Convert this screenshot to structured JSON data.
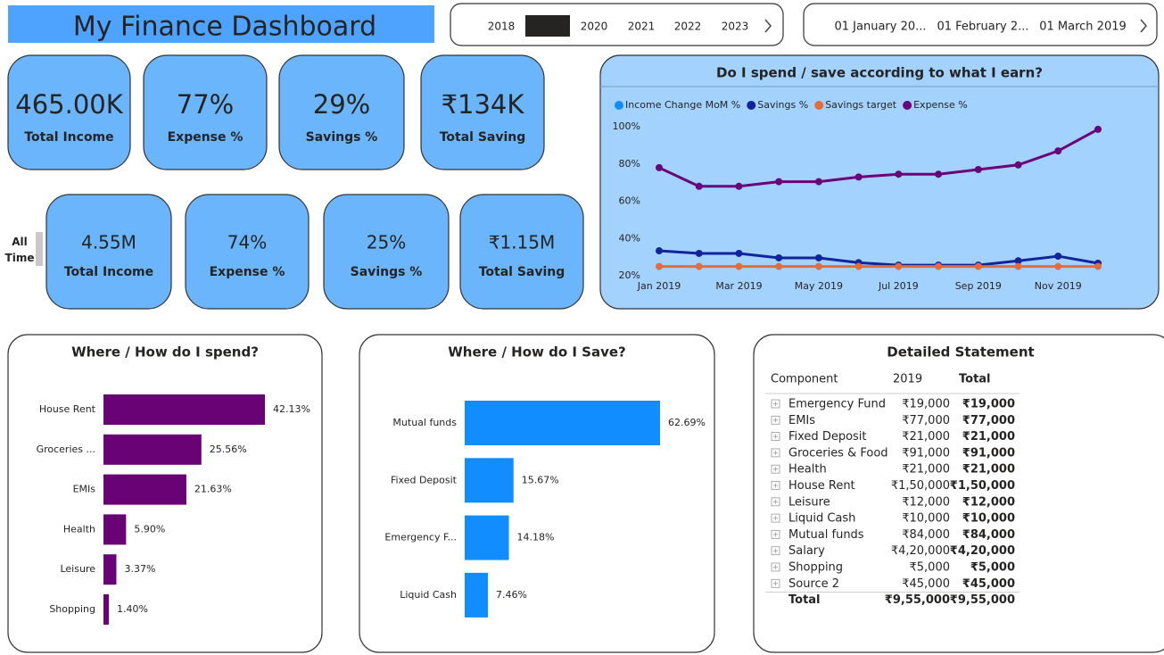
{
  "header": {
    "title": "My Finance Dashboard"
  },
  "year_slicer": {
    "options": [
      "2018",
      "2019",
      "2020",
      "2021",
      "2022",
      "2023"
    ],
    "selected": "2019"
  },
  "month_slicer": {
    "options": [
      "01 January 20...",
      "01 February 2...",
      "01 March 2019"
    ]
  },
  "kpis": {
    "current": [
      {
        "value": "465.00K",
        "label": "Total Income"
      },
      {
        "value": "77%",
        "label": "Expense %"
      },
      {
        "value": "29%",
        "label": "Savings %"
      },
      {
        "value": "₹134K",
        "label": "Total Saving"
      }
    ],
    "all_time_label": "All Time",
    "all_time": [
      {
        "value": "4.55M",
        "label": "Total Income"
      },
      {
        "value": "74%",
        "label": "Expense %"
      },
      {
        "value": "25%",
        "label": "Savings %"
      },
      {
        "value": "₹1.15M",
        "label": "Total Saving"
      }
    ]
  },
  "chart_data": [
    {
      "type": "line",
      "title": "Do I spend / save according to what I earn?",
      "categories": [
        "Jan 2019",
        null,
        "Mar 2019",
        null,
        "May 2019",
        null,
        "Jul 2019",
        null,
        "Sep 2019",
        null,
        "Nov 2019",
        null
      ],
      "ylim": [
        20,
        100
      ],
      "yticks": [
        {
          "value": 20,
          "label": "20%"
        },
        {
          "value": 40,
          "label": "40%"
        },
        {
          "value": 60,
          "label": "60%"
        },
        {
          "value": 80,
          "label": "80%"
        },
        {
          "value": 100,
          "label": "100%"
        }
      ],
      "grid": false,
      "series": [
        {
          "name": "Income Change MoM %",
          "color": "#118dff",
          "values": [
            null,
            null,
            null,
            null,
            null,
            null,
            null,
            null,
            null,
            null,
            null,
            null
          ]
        },
        {
          "name": "Savings %",
          "color": "#12239e",
          "values": [
            33.4,
            32,
            32,
            29.6,
            29.6,
            27,
            25.7,
            25.7,
            25.7,
            28,
            30.5,
            26.7
          ]
        },
        {
          "name": "Savings target",
          "color": "#e66c37",
          "values": [
            25,
            25,
            25,
            25,
            25,
            25,
            25,
            25,
            25,
            25,
            25,
            25
          ]
        },
        {
          "name": "Expense %",
          "color": "#6b007b",
          "values": [
            78,
            68,
            68,
            70.5,
            70.5,
            73,
            74.5,
            74.5,
            77,
            79.5,
            87,
            98.6
          ]
        }
      ]
    },
    {
      "type": "hbar",
      "title": "Where / How do I spend?",
      "categories": [
        "House Rent",
        "Groceries ...",
        "EMIs",
        "Health",
        "Leisure",
        "Shopping"
      ],
      "values": [
        42.13,
        25.56,
        21.63,
        5.9,
        3.37,
        1.4
      ],
      "value_labels": [
        "42.13%",
        "25.56%",
        "21.63%",
        "5.90%",
        "3.37%",
        "1.40%"
      ],
      "color": "#690375"
    },
    {
      "type": "hbar",
      "title": "Where / How do I Save?",
      "categories": [
        "Mutual funds",
        "Fixed Deposit",
        "Emergency F...",
        "Liquid Cash"
      ],
      "values": [
        62.69,
        15.67,
        14.18,
        7.46
      ],
      "value_labels": [
        "62.69%",
        "15.67%",
        "14.18%",
        "7.46%"
      ],
      "color": "#118dff"
    }
  ],
  "statement": {
    "title": "Detailed Statement",
    "columns": [
      "Component",
      "2019",
      "Total"
    ],
    "rows": [
      [
        "Emergency Fund",
        "₹19,000",
        "₹19,000"
      ],
      [
        "EMIs",
        "₹77,000",
        "₹77,000"
      ],
      [
        "Fixed Deposit",
        "₹21,000",
        "₹21,000"
      ],
      [
        "Groceries & Food",
        "₹91,000",
        "₹91,000"
      ],
      [
        "Health",
        "₹21,000",
        "₹21,000"
      ],
      [
        "House Rent",
        "₹1,50,000",
        "₹1,50,000"
      ],
      [
        "Leisure",
        "₹12,000",
        "₹12,000"
      ],
      [
        "Liquid Cash",
        "₹10,000",
        "₹10,000"
      ],
      [
        "Mutual funds",
        "₹84,000",
        "₹84,000"
      ],
      [
        "Salary",
        "₹4,20,000",
        "₹4,20,000"
      ],
      [
        "Shopping",
        "₹5,000",
        "₹5,000"
      ],
      [
        "Source 2",
        "₹45,000",
        "₹45,000"
      ]
    ],
    "total": [
      "Total",
      "₹9,55,000",
      "₹9,55,000"
    ]
  }
}
